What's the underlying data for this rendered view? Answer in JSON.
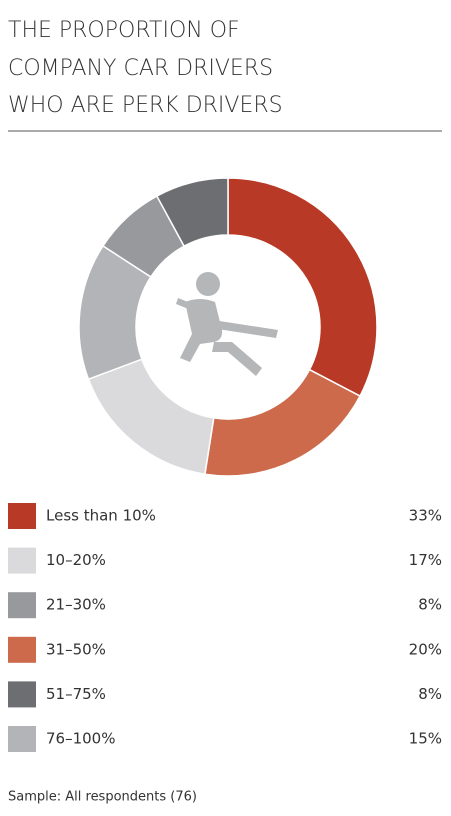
{
  "chart_data": {
    "type": "donut",
    "title_lines": [
      "THE PROPORTION OF",
      "COMPANY CAR DRIVERS",
      "WHO ARE PERK DRIVERS"
    ],
    "categories": [
      "Less than 10%",
      "10–20%",
      "21–30%",
      "31–50%",
      "51–75%",
      "76–100%"
    ],
    "values": [
      33,
      17,
      8,
      20,
      8,
      15
    ],
    "value_labels": [
      "33%",
      "17%",
      "8%",
      "20%",
      "8%",
      "15%"
    ],
    "colors": [
      "#b83a26",
      "#dadadd",
      "#98999c",
      "#cc6a4b",
      "#6d6e71",
      "#b3b4b7"
    ],
    "note": "Sample: All respondents (76)"
  }
}
